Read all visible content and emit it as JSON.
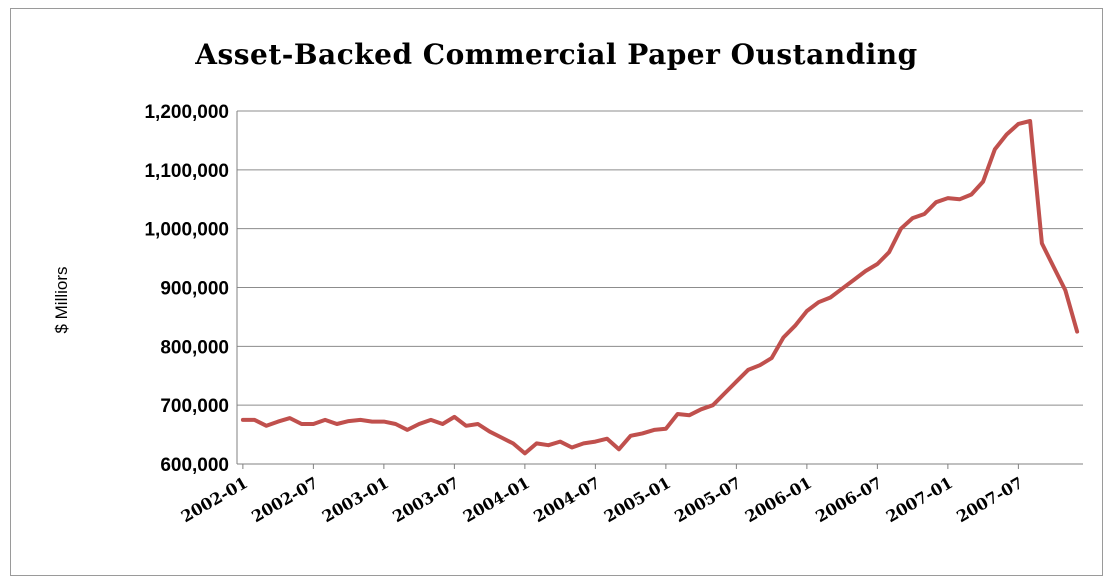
{
  "chart_data": {
    "type": "line",
    "title": "Asset-Backed Commercial Paper Oustanding",
    "ylabel": "$ Milliors",
    "xlabel": "",
    "ylim": [
      600000,
      1200000
    ],
    "yticks": [
      600000,
      700000,
      800000,
      900000,
      1000000,
      1100000,
      1200000
    ],
    "ytick_labels": [
      "600,000",
      "700,000",
      "800,000",
      "900,000",
      "1,000,000",
      "1,100,000",
      "1,200,000"
    ],
    "xtick_labels": [
      "2002-01",
      "2002-07",
      "2003-01",
      "2003-07",
      "2004-01",
      "2004-07",
      "2005-01",
      "2005-07",
      "2006-01",
      "2006-07",
      "2007-01",
      "2007-07"
    ],
    "grid": true,
    "color": "#c0504d",
    "series": [
      {
        "x": [
          "2002-01",
          "2002-02",
          "2002-03",
          "2002-04",
          "2002-05",
          "2002-06",
          "2002-07",
          "2002-08",
          "2002-09",
          "2002-10",
          "2002-11",
          "2002-12",
          "2003-01",
          "2003-02",
          "2003-03",
          "2003-04",
          "2003-05",
          "2003-06",
          "2003-07",
          "2003-08",
          "2003-09",
          "2003-10",
          "2003-11",
          "2003-12",
          "2004-01",
          "2004-02",
          "2004-03",
          "2004-04",
          "2004-05",
          "2004-06",
          "2004-07",
          "2004-08",
          "2004-09",
          "2004-10",
          "2004-11",
          "2004-12",
          "2005-01",
          "2005-02",
          "2005-03",
          "2005-04",
          "2005-05",
          "2005-06",
          "2005-07",
          "2005-08",
          "2005-09",
          "2005-10",
          "2005-11",
          "2005-12",
          "2006-01",
          "2006-02",
          "2006-03",
          "2006-04",
          "2006-05",
          "2006-06",
          "2006-07",
          "2006-08",
          "2006-09",
          "2006-10",
          "2006-11",
          "2006-12",
          "2007-01",
          "2007-02",
          "2007-03",
          "2007-04",
          "2007-05",
          "2007-06",
          "2007-07",
          "2007-08",
          "2007-09",
          "2007-10",
          "2007-11",
          "2007-12"
        ],
        "values": [
          675000,
          675000,
          665000,
          672000,
          678000,
          668000,
          668000,
          675000,
          668000,
          673000,
          675000,
          672000,
          672000,
          668000,
          658000,
          668000,
          675000,
          668000,
          680000,
          665000,
          668000,
          655000,
          645000,
          635000,
          618000,
          635000,
          632000,
          638000,
          628000,
          635000,
          638000,
          643000,
          625000,
          648000,
          652000,
          658000,
          660000,
          685000,
          683000,
          693000,
          700000,
          720000,
          740000,
          760000,
          768000,
          780000,
          815000,
          835000,
          860000,
          875000,
          883000,
          898000,
          913000,
          928000,
          940000,
          960000,
          1000000,
          1018000,
          1025000,
          1045000,
          1052000,
          1050000,
          1058000,
          1080000,
          1135000,
          1160000,
          1178000,
          1183000,
          975000,
          935000,
          895000,
          825000
        ]
      }
    ]
  }
}
